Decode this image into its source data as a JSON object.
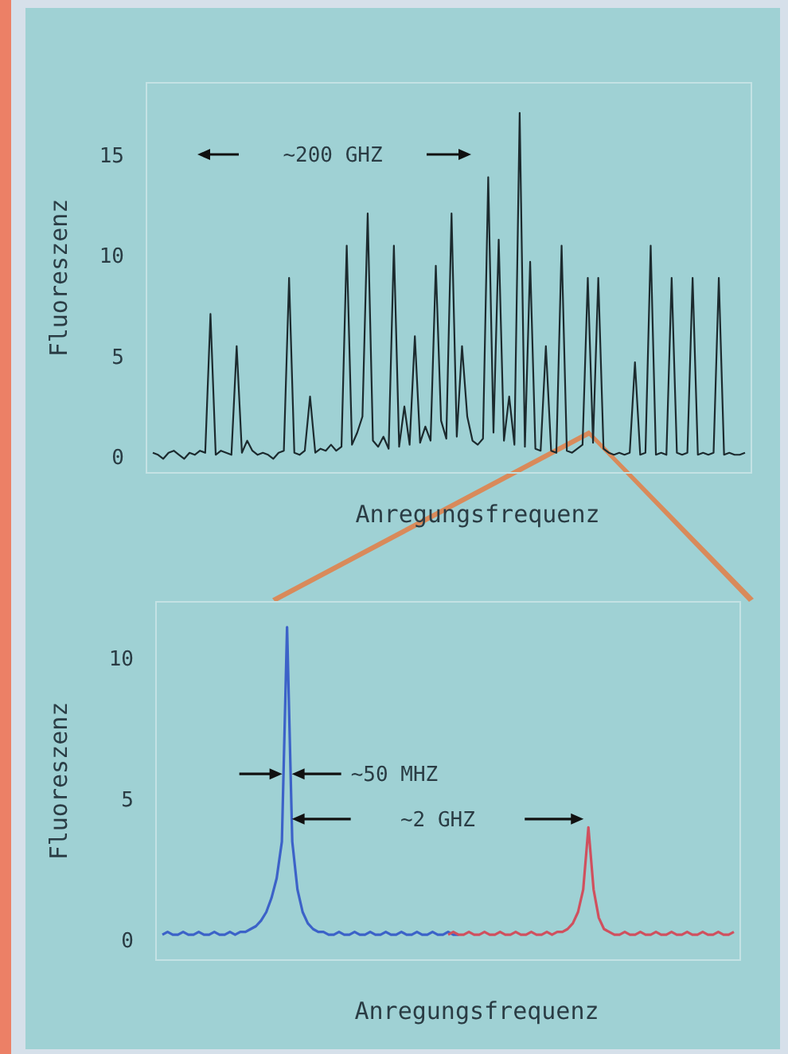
{
  "chart_data": [
    {
      "type": "line",
      "ylabel": "Fluoreszenz",
      "xlabel": "Anregungsfrequenz",
      "annotations": [
        "~200 GHZ"
      ],
      "ylim": [
        -0.8,
        18.6
      ],
      "yticks": [
        0,
        5,
        10,
        15
      ],
      "grid": false,
      "categories": [
        null,
        null,
        null,
        null,
        null,
        null,
        null,
        null,
        null,
        null,
        null,
        null,
        null,
        null,
        null,
        null,
        null,
        null,
        null,
        null,
        null,
        null,
        null,
        null,
        null,
        null,
        null,
        null,
        null,
        null,
        null,
        null,
        null,
        null,
        null,
        null,
        null,
        null,
        null,
        null,
        null,
        null,
        null,
        null,
        null,
        null,
        null,
        null,
        null,
        null,
        null,
        null,
        null,
        null,
        null,
        null,
        null,
        null,
        null,
        null,
        null,
        null,
        null,
        null,
        null,
        null,
        null,
        null,
        null,
        null,
        null,
        null,
        null,
        null,
        null,
        null,
        null,
        null,
        null,
        null,
        null,
        null,
        null,
        null,
        null,
        null,
        null,
        null,
        null,
        null,
        null,
        null,
        null,
        null,
        null,
        null,
        null,
        null,
        null,
        null,
        null,
        null,
        null,
        null,
        null,
        null,
        null,
        null,
        null,
        null,
        null,
        null,
        null,
        null
      ],
      "series": [
        {
          "color": "#1c2a2e",
          "values": [
            0.2,
            0.1,
            -0.1,
            0.2,
            0.3,
            0.1,
            -0.1,
            0.2,
            0.1,
            0.3,
            0.2,
            7.1,
            0.1,
            0.3,
            0.2,
            0.1,
            5.5,
            0.2,
            0.8,
            0.3,
            0.1,
            0.2,
            0.1,
            -0.1,
            0.2,
            0.3,
            8.9,
            0.2,
            0.1,
            0.3,
            3,
            0.2,
            0.4,
            0.3,
            0.6,
            0.3,
            0.5,
            10.5,
            0.6,
            1.2,
            2,
            12.1,
            0.8,
            0.5,
            1,
            0.4,
            10.5,
            0.5,
            2.5,
            0.6,
            6,
            0.7,
            1.5,
            0.8,
            9.5,
            1.8,
            0.9,
            12.1,
            1.0,
            5.5,
            2,
            0.8,
            0.6,
            0.9,
            13.9,
            1.2,
            10.8,
            0.8,
            3,
            0.6,
            17.1,
            0.5,
            9.7,
            0.4,
            0.3,
            5.5,
            0.3,
            0.2,
            10.5,
            0.3,
            0.2,
            0.4,
            0.6,
            8.9,
            0.7,
            8.9,
            0.4,
            0.2,
            0.1,
            0.2,
            0.1,
            0.2,
            4.7,
            0.1,
            0.2,
            10.5,
            0.1,
            0.2,
            0.1,
            8.9,
            0.2,
            0.1,
            0.2,
            8.9,
            0.1,
            0.2,
            0.1,
            0.2,
            8.9,
            0.1,
            0.2,
            0.1,
            0.1,
            0.2
          ]
        }
      ]
    },
    {
      "type": "line",
      "ylabel": "Fluoreszenz",
      "xlabel": "Anregungsfrequenz",
      "annotations": [
        "~50 MHZ",
        "~2 GHZ"
      ],
      "ylim": [
        -0.7,
        12
      ],
      "yticks": [
        0,
        5,
        10
      ],
      "grid": false,
      "categories": [
        null,
        null,
        null,
        null,
        null,
        null,
        null,
        null,
        null,
        null,
        null,
        null,
        null,
        null,
        null,
        null,
        null,
        null,
        null,
        null,
        null,
        null,
        null,
        null,
        null,
        null,
        null,
        null,
        null,
        null,
        null,
        null,
        null,
        null,
        null,
        null,
        null,
        null,
        null,
        null,
        null,
        null,
        null,
        null,
        null,
        null,
        null,
        null,
        null,
        null,
        null,
        null,
        null,
        null,
        null,
        null,
        null,
        null,
        null,
        null,
        null,
        null,
        null,
        null,
        null,
        null,
        null,
        null,
        null,
        null,
        null,
        null,
        null,
        null,
        null,
        null,
        null,
        null,
        null,
        null,
        null,
        null,
        null,
        null,
        null,
        null,
        null,
        null,
        null,
        null,
        null,
        null,
        null,
        null,
        null,
        null,
        null,
        null,
        null,
        null,
        null,
        null,
        null,
        null,
        null,
        null,
        null,
        null,
        null,
        null,
        null
      ],
      "series": [
        {
          "color": "#3c62c8",
          "values": [
            0.2,
            0.3,
            0.2,
            0.2,
            0.3,
            0.2,
            0.2,
            0.3,
            0.2,
            0.2,
            0.3,
            0.2,
            0.2,
            0.3,
            0.2,
            0.3,
            0.3,
            0.4,
            0.5,
            0.7,
            1.0,
            1.5,
            2.2,
            3.5,
            11.1,
            3.5,
            1.8,
            1.0,
            0.6,
            0.4,
            0.3,
            0.3,
            0.2,
            0.2,
            0.3,
            0.2,
            0.2,
            0.3,
            0.2,
            0.2,
            0.3,
            0.2,
            0.2,
            0.3,
            0.2,
            0.2,
            0.3,
            0.2,
            0.2,
            0.3,
            0.2,
            0.2,
            0.3,
            0.2,
            0.2,
            0.3,
            0.2,
            0.2,
            null,
            null,
            null,
            null,
            null,
            null,
            null,
            null,
            null,
            null,
            null,
            null,
            null,
            null,
            null,
            null,
            null,
            null,
            null,
            null,
            null,
            null,
            null,
            null,
            null,
            null,
            null,
            null,
            null,
            null,
            null,
            null,
            null,
            null,
            null,
            null,
            null,
            null,
            null,
            null,
            null,
            null,
            null,
            null,
            null,
            null,
            null,
            null,
            null,
            null,
            null,
            null,
            null
          ]
        },
        {
          "color": "#d0505e",
          "values": [
            null,
            null,
            null,
            null,
            null,
            null,
            null,
            null,
            null,
            null,
            null,
            null,
            null,
            null,
            null,
            null,
            null,
            null,
            null,
            null,
            null,
            null,
            null,
            null,
            null,
            null,
            null,
            null,
            null,
            null,
            null,
            null,
            null,
            null,
            null,
            null,
            null,
            null,
            null,
            null,
            null,
            null,
            null,
            null,
            null,
            null,
            null,
            null,
            null,
            null,
            null,
            null,
            null,
            null,
            null,
            0.2,
            0.3,
            0.2,
            0.2,
            0.3,
            0.2,
            0.2,
            0.3,
            0.2,
            0.2,
            0.3,
            0.2,
            0.2,
            0.3,
            0.2,
            0.2,
            0.3,
            0.2,
            0.2,
            0.3,
            0.2,
            0.3,
            0.3,
            0.4,
            0.6,
            1.0,
            1.8,
            4.0,
            1.8,
            0.8,
            0.4,
            0.3,
            0.2,
            0.2,
            0.3,
            0.2,
            0.2,
            0.3,
            0.2,
            0.2,
            0.3,
            0.2,
            0.2,
            0.3,
            0.2,
            0.2,
            0.3,
            0.2,
            0.2,
            0.3,
            0.2,
            0.2,
            0.3,
            0.2,
            0.2,
            0.3
          ]
        }
      ]
    }
  ]
}
